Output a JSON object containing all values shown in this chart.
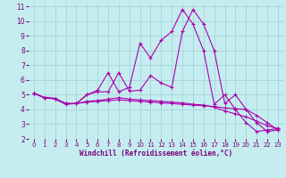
{
  "xlabel": "Windchill (Refroidissement éolien,°C)",
  "bg_color": "#c5edf0",
  "grid_color": "#a8d8dc",
  "line_color": "#aa00aa",
  "xlim": [
    -0.5,
    23.5
  ],
  "ylim": [
    2,
    11.2
  ],
  "yticks": [
    2,
    3,
    4,
    5,
    6,
    7,
    8,
    9,
    10,
    11
  ],
  "xticks": [
    0,
    1,
    2,
    3,
    4,
    5,
    6,
    7,
    8,
    9,
    10,
    11,
    12,
    13,
    14,
    15,
    16,
    17,
    18,
    19,
    20,
    21,
    22,
    23
  ],
  "s1_x": [
    0,
    1,
    2,
    3,
    4,
    5,
    6,
    7,
    8,
    9,
    10,
    11,
    12,
    13,
    14,
    15,
    16,
    17,
    18,
    19,
    20,
    21,
    22,
    23
  ],
  "s1_y": [
    5.1,
    4.8,
    4.7,
    4.35,
    4.4,
    5.0,
    5.3,
    6.5,
    5.2,
    5.5,
    8.5,
    7.5,
    8.7,
    9.3,
    10.8,
    9.8,
    8.0,
    4.35,
    5.0,
    4.0,
    3.1,
    2.5,
    2.6,
    2.7
  ],
  "s2_x": [
    0,
    1,
    2,
    3,
    4,
    5,
    6,
    7,
    8,
    9,
    10,
    11,
    12,
    13,
    14,
    15,
    16,
    17,
    18,
    19,
    20,
    21,
    22,
    23
  ],
  "s2_y": [
    5.1,
    4.8,
    4.75,
    4.4,
    4.4,
    5.0,
    5.2,
    5.2,
    6.5,
    5.25,
    5.3,
    6.3,
    5.8,
    5.5,
    9.3,
    10.8,
    9.8,
    8.0,
    4.4,
    5.0,
    4.0,
    3.1,
    2.5,
    2.6
  ],
  "s3_x": [
    0,
    1,
    2,
    3,
    4,
    5,
    6,
    7,
    8,
    9,
    10,
    11,
    12,
    13,
    14,
    15,
    16,
    17,
    18,
    19,
    20,
    21,
    22,
    23
  ],
  "s3_y": [
    5.1,
    4.8,
    4.75,
    4.4,
    4.4,
    4.55,
    4.6,
    4.7,
    4.8,
    4.7,
    4.65,
    4.6,
    4.55,
    4.5,
    4.45,
    4.35,
    4.3,
    4.15,
    3.9,
    3.7,
    3.5,
    3.2,
    2.9,
    2.7
  ],
  "s4_x": [
    0,
    1,
    2,
    3,
    4,
    5,
    6,
    7,
    8,
    9,
    10,
    11,
    12,
    13,
    14,
    15,
    16,
    17,
    18,
    19,
    20,
    21,
    22,
    23
  ],
  "s4_y": [
    5.1,
    4.8,
    4.75,
    4.4,
    4.4,
    4.5,
    4.55,
    4.6,
    4.65,
    4.6,
    4.55,
    4.5,
    4.45,
    4.4,
    4.35,
    4.3,
    4.25,
    4.2,
    4.1,
    4.05,
    4.0,
    3.6,
    3.1,
    2.6
  ]
}
